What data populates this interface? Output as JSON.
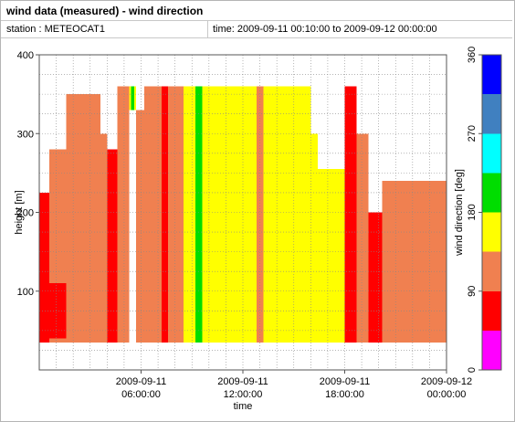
{
  "header": {
    "title": "wind data (measured) - wind direction",
    "station": "station : METEOCAT1",
    "time_range": "time: 2009-09-11 00:10:00 to 2009-09-12 00:00:00"
  },
  "chart_data": {
    "type": "heatmap",
    "xlabel": "time",
    "ylabel": "height [m]",
    "x_range_hours": [
      0,
      24
    ],
    "ylim": [
      0,
      400
    ],
    "x_ticks": [
      {
        "hour": 6,
        "line1": "2009-09-11",
        "line2": "06:00:00"
      },
      {
        "hour": 12,
        "line1": "2009-09-11",
        "line2": "12:00:00"
      },
      {
        "hour": 18,
        "line1": "2009-09-11",
        "line2": "18:00:00"
      },
      {
        "hour": 24,
        "line1": "2009-09-12",
        "line2": "00:00:00"
      }
    ],
    "y_ticks": [
      100,
      200,
      300,
      400
    ],
    "colorbar": {
      "label": "wind direction [deg]",
      "ticks": [
        0,
        90,
        180,
        270,
        360
      ],
      "bins": [
        {
          "from": 0,
          "to": 45,
          "color": "#ff00ff"
        },
        {
          "from": 45,
          "to": 90,
          "color": "#ff0000"
        },
        {
          "from": 90,
          "to": 135,
          "color": "#f08050"
        },
        {
          "from": 135,
          "to": 180,
          "color": "#ffff00"
        },
        {
          "from": 180,
          "to": 225,
          "color": "#00dd00"
        },
        {
          "from": 225,
          "to": 270,
          "color": "#00ffff"
        },
        {
          "from": 270,
          "to": 315,
          "color": "#4080c0"
        },
        {
          "from": 315,
          "to": 360,
          "color": "#0000ff"
        }
      ]
    },
    "regions": [
      {
        "t": [
          0.0,
          0.6
        ],
        "h": [
          35,
          225
        ],
        "dir": 60
      },
      {
        "t": [
          0.6,
          1.6
        ],
        "h": [
          35,
          280
        ],
        "dir": 110
      },
      {
        "t": [
          0.1,
          2.5
        ],
        "h": [
          40,
          110
        ],
        "dir": 60
      },
      {
        "t": [
          1.6,
          3.6
        ],
        "h": [
          35,
          350
        ],
        "dir": 110
      },
      {
        "t": [
          3.6,
          4.0
        ],
        "h": [
          35,
          300
        ],
        "dir": 110
      },
      {
        "t": [
          4.0,
          4.6
        ],
        "h": [
          35,
          280
        ],
        "dir": 60
      },
      {
        "t": [
          4.6,
          5.3
        ],
        "h": [
          35,
          360
        ],
        "dir": 110
      },
      {
        "t": [
          5.3,
          5.7
        ],
        "h": [
          330,
          360
        ],
        "dir": 150
      },
      {
        "t": [
          5.4,
          5.6
        ],
        "h": [
          330,
          360
        ],
        "dir": 200
      },
      {
        "t": [
          5.7,
          6.2
        ],
        "h": [
          35,
          330
        ],
        "dir": 110
      },
      {
        "t": [
          6.2,
          7.2
        ],
        "h": [
          35,
          360
        ],
        "dir": 110
      },
      {
        "t": [
          7.2,
          7.6
        ],
        "h": [
          35,
          360
        ],
        "dir": 60
      },
      {
        "t": [
          7.6,
          8.5
        ],
        "h": [
          35,
          360
        ],
        "dir": 110
      },
      {
        "t": [
          8.5,
          9.2
        ],
        "h": [
          35,
          360
        ],
        "dir": 150
      },
      {
        "t": [
          9.2,
          9.6
        ],
        "h": [
          35,
          360
        ],
        "dir": 200
      },
      {
        "t": [
          9.6,
          12.8
        ],
        "h": [
          35,
          360
        ],
        "dir": 150
      },
      {
        "t": [
          12.8,
          13.2
        ],
        "h": [
          35,
          360
        ],
        "dir": 110
      },
      {
        "t": [
          13.2,
          16.0
        ],
        "h": [
          35,
          360
        ],
        "dir": 150
      },
      {
        "t": [
          16.0,
          16.4
        ],
        "h": [
          35,
          300
        ],
        "dir": 150
      },
      {
        "t": [
          16.4,
          18.0
        ],
        "h": [
          35,
          255
        ],
        "dir": 150
      },
      {
        "t": [
          18.0,
          18.7
        ],
        "h": [
          35,
          360
        ],
        "dir": 60
      },
      {
        "t": [
          18.7,
          19.4
        ],
        "h": [
          35,
          300
        ],
        "dir": 110
      },
      {
        "t": [
          19.4,
          20.2
        ],
        "h": [
          35,
          200
        ],
        "dir": 60
      },
      {
        "t": [
          20.2,
          24.0
        ],
        "h": [
          35,
          240
        ],
        "dir": 110
      }
    ]
  }
}
